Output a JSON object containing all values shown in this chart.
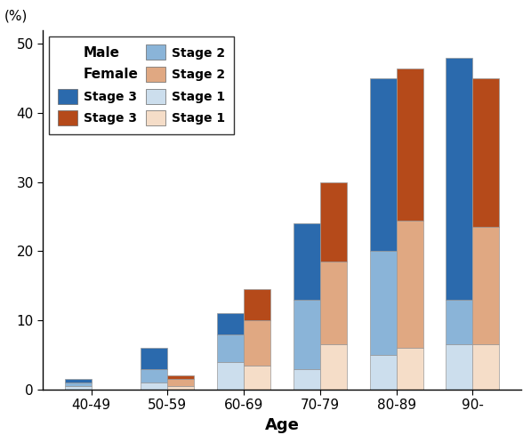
{
  "categories": [
    "40-49",
    "50-59",
    "60-69",
    "70-79",
    "80-89",
    "90-"
  ],
  "male": {
    "stage1": [
      0.5,
      1.0,
      4.0,
      3.0,
      5.0,
      6.5
    ],
    "stage2": [
      0.5,
      2.0,
      4.0,
      10.0,
      15.0,
      6.5
    ],
    "stage3": [
      0.5,
      3.0,
      3.0,
      11.0,
      25.0,
      35.0
    ]
  },
  "female": {
    "stage1": [
      0.0,
      0.5,
      3.5,
      6.5,
      6.0,
      6.5
    ],
    "stage2": [
      0.0,
      1.0,
      6.5,
      12.0,
      18.5,
      17.0
    ],
    "stage3": [
      0.0,
      0.5,
      4.5,
      11.5,
      22.0,
      21.5
    ]
  },
  "colors": {
    "male_stage1": "#ccdeed",
    "male_stage2": "#8ab4d8",
    "male_stage3": "#2b6aad",
    "female_stage1": "#f5ddc8",
    "female_stage2": "#e0a882",
    "female_stage3": "#b54a1a"
  },
  "bar_width": 0.35,
  "ylim": [
    0,
    52
  ],
  "yticks": [
    0,
    10,
    20,
    30,
    40,
    50
  ],
  "ylabel": "(%)",
  "xlabel": "Age",
  "background_color": "#ffffff"
}
